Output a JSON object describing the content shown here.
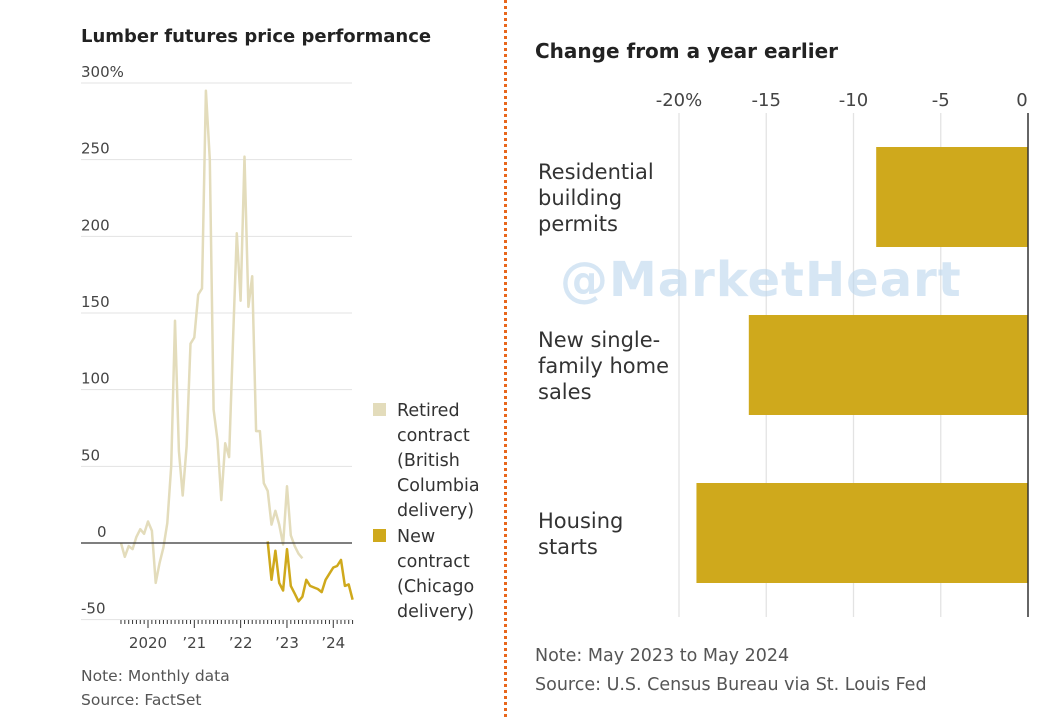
{
  "watermark": "@MarketHeart",
  "colors": {
    "retired": "#e3dcbb",
    "new": "#cfa91c",
    "bar": "#cfa91c",
    "grid": "#e3e3e3",
    "divider": "#e8671c"
  },
  "chart_data": [
    {
      "type": "line",
      "title": "Lumber futures price performance",
      "ylim": [
        -50,
        300
      ],
      "yticks": [
        300,
        250,
        200,
        150,
        100,
        50,
        0,
        -50
      ],
      "ytick_labels": [
        "300%",
        "250",
        "200",
        "150",
        "100",
        "50",
        "0",
        "-50"
      ],
      "xtick_labels": [
        "2020",
        "’21",
        "’22",
        "’23",
        "’24"
      ],
      "xticks": [
        "2020-01",
        "2021-01",
        "2022-01",
        "2023-01",
        "2024-01"
      ],
      "xlim": [
        "2019-06",
        "2024-06"
      ],
      "grid": true,
      "legend_placement": "right",
      "series": [
        {
          "name": "Retired contract (British Columbia delivery)",
          "start": "2019-06",
          "values": [
            0,
            -9,
            -2,
            -4,
            4,
            9,
            6,
            14,
            8,
            -26,
            -13,
            -3,
            13,
            50,
            145,
            60,
            31,
            63,
            130,
            134,
            162,
            166,
            295,
            250,
            87,
            67,
            28,
            65,
            56,
            130,
            202,
            158,
            252,
            154,
            174,
            73,
            73,
            39,
            34,
            12,
            21,
            12,
            -1,
            37,
            5,
            -2,
            -7,
            -10
          ]
        },
        {
          "name": "New contract (Chicago delivery)",
          "start": "2022-08",
          "values": [
            1,
            -24,
            -5,
            -26,
            -31,
            -4,
            -28,
            -33,
            -38,
            -35,
            -24,
            -28,
            -29,
            -30,
            -32,
            -24,
            -20,
            -16,
            -15,
            -11,
            -28,
            -27,
            -37
          ]
        }
      ],
      "legend": [
        {
          "lines": [
            "Retired",
            "contract",
            "(British",
            "Columbia",
            "delivery)"
          ]
        },
        {
          "lines": [
            "New",
            "contract",
            "(Chicago",
            "delivery)"
          ]
        }
      ],
      "notes": [
        "Note: Monthly data",
        "Source: FactSet"
      ]
    },
    {
      "type": "bar",
      "orientation": "horizontal",
      "title": "Change from a year earlier",
      "xlim": [
        -20,
        0
      ],
      "xticks": [
        -20,
        -15,
        -10,
        -5,
        0
      ],
      "xtick_labels": [
        "-20%",
        "-15",
        "-10",
        "-5",
        "0"
      ],
      "grid": true,
      "categories": [
        [
          "Residential",
          "building",
          "permits"
        ],
        [
          "New single-",
          "family home",
          "sales"
        ],
        [
          "Housing",
          "starts"
        ]
      ],
      "values": [
        -8.7,
        -16.0,
        -19.0
      ],
      "notes": [
        "Note: May 2023 to May 2024",
        "Source: U.S. Census Bureau via St. Louis Fed"
      ]
    }
  ]
}
